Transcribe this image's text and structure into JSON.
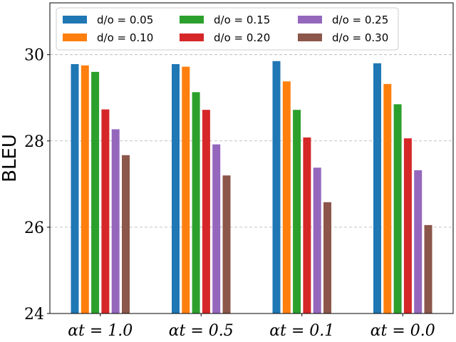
{
  "chart_data": {
    "type": "bar",
    "title": "",
    "xlabel": "",
    "ylabel": "BLEU",
    "ylim": [
      24,
      31.2
    ],
    "yticks": [
      24,
      26,
      28,
      30
    ],
    "grid": "y-dashed",
    "legend_position": "top-left",
    "legend_columns": 3,
    "categories": [
      "αt = 1.0",
      "αt = 0.5",
      "αt = 0.1",
      "αt = 0.0"
    ],
    "series": [
      {
        "name": "d/o = 0.05",
        "color": "#1f77b4",
        "values": [
          29.78,
          29.78,
          29.85,
          29.8
        ]
      },
      {
        "name": "d/o = 0.10",
        "color": "#ff7f0e",
        "values": [
          29.75,
          29.72,
          29.38,
          29.32
        ]
      },
      {
        "name": "d/o = 0.15",
        "color": "#2ca02c",
        "values": [
          29.6,
          29.13,
          28.72,
          28.85
        ]
      },
      {
        "name": "d/o = 0.20",
        "color": "#d62728",
        "values": [
          28.73,
          28.72,
          28.08,
          28.06
        ]
      },
      {
        "name": "d/o = 0.25",
        "color": "#9467bd",
        "values": [
          28.27,
          27.92,
          27.38,
          27.32
        ]
      },
      {
        "name": "d/o = 0.30",
        "color": "#8c564b",
        "values": [
          27.67,
          27.2,
          26.58,
          26.05
        ]
      }
    ]
  }
}
